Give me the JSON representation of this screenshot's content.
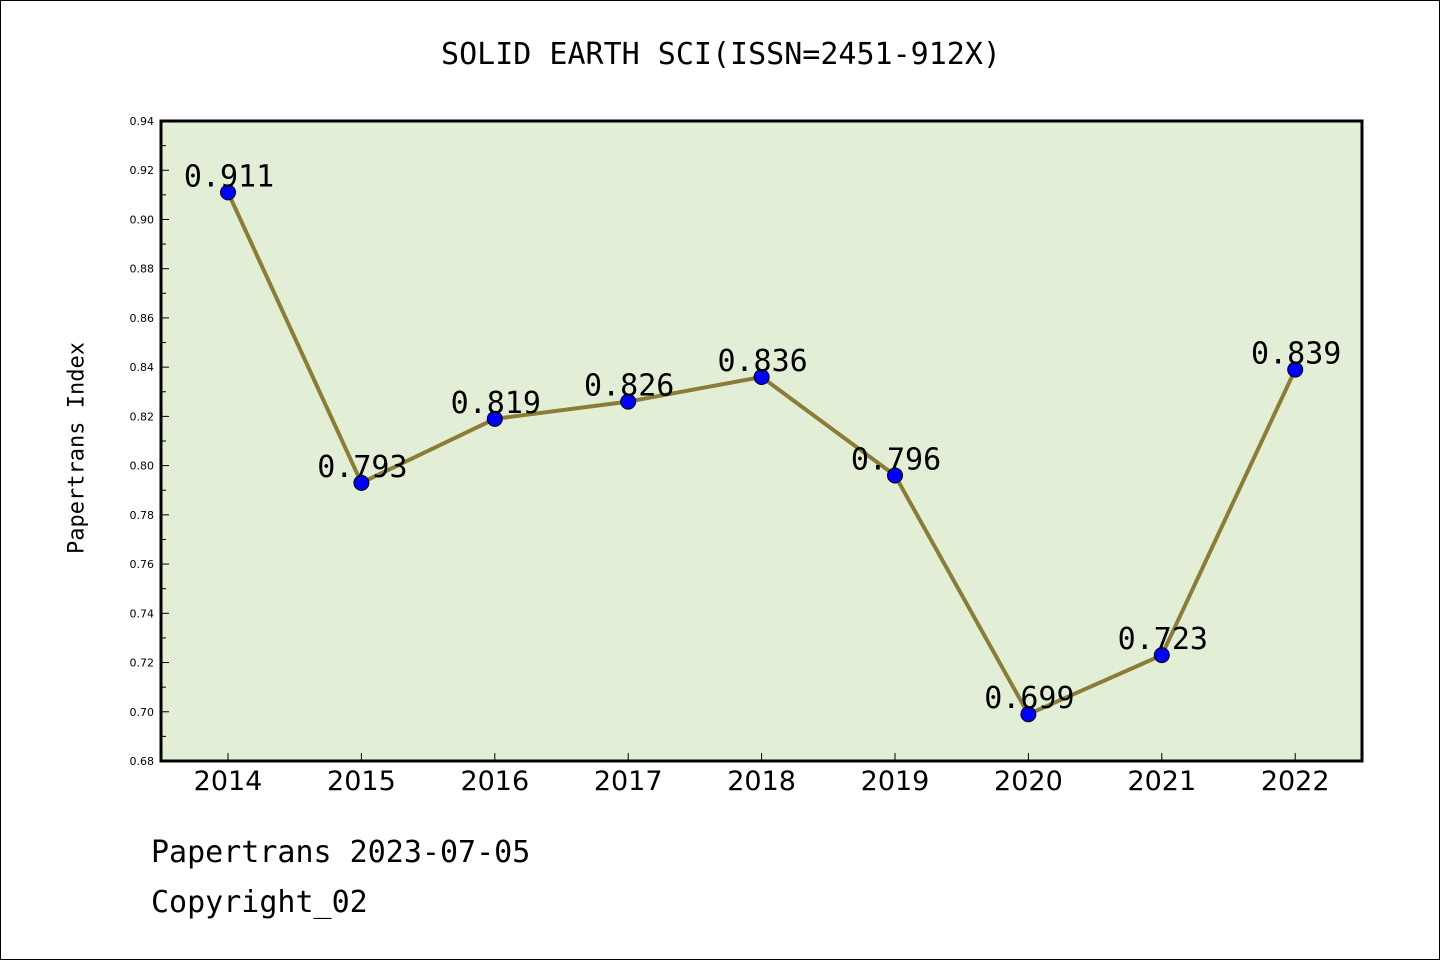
{
  "chart_data": {
    "type": "line",
    "title": "SOLID EARTH SCI(ISSN=2451-912X)",
    "xlabel": "",
    "ylabel": "Papertrans Index",
    "categories": [
      "2014",
      "2015",
      "2016",
      "2017",
      "2018",
      "2019",
      "2020",
      "2021",
      "2022"
    ],
    "series": [
      {
        "values": [
          0.911,
          0.793,
          0.819,
          0.826,
          0.836,
          0.796,
          0.699,
          0.723,
          0.839
        ],
        "labels": [
          "0.911",
          "0.793",
          "0.819",
          "0.826",
          "0.836",
          "0.796",
          "0.699",
          "0.723",
          "0.839"
        ]
      }
    ],
    "ylim": [
      0.68,
      0.94
    ],
    "yticks": [
      "0.68",
      "0.70",
      "0.72",
      "0.74",
      "0.76",
      "0.78",
      "0.80",
      "0.82",
      "0.84",
      "0.86",
      "0.88",
      "0.90",
      "0.92",
      "0.94"
    ],
    "grid": false,
    "legend": "none",
    "colors": {
      "plot_background": "#e2efd6",
      "line": "#8b7d35",
      "marker": "#0000ff"
    }
  },
  "footer": {
    "line1": "Papertrans 2023-07-05",
    "line2": "Copyright_02"
  }
}
